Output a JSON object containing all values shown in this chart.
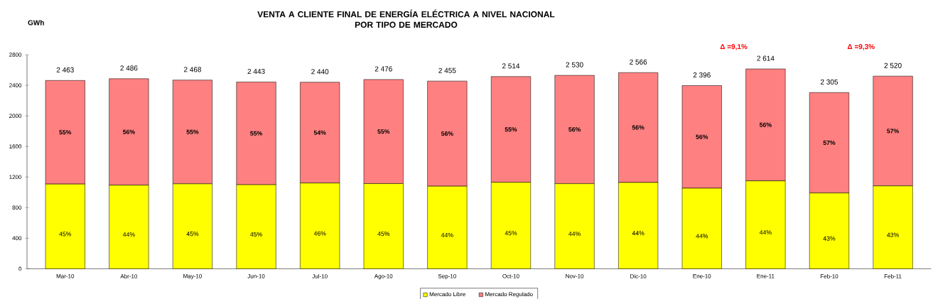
{
  "chart_data": {
    "type": "bar",
    "stacked": true,
    "title": "VENTA A CLIENTE FINAL DE ENERGÍA ELÉCTRICA A NIVEL NACIONAL\nPOR TIPO DE MERCADO",
    "ylabel": "GWh",
    "categories": [
      "Mar-10",
      "Abr-10",
      "May-10",
      "Jun-10",
      "Jul-10",
      "Ago-10",
      "Sep-10",
      "Oct-10",
      "Nov-10",
      "Dic-10",
      "Ene-10",
      "Ene-11",
      "Feb-10",
      "Feb-11"
    ],
    "series": [
      {
        "name": "Mercado Libre",
        "color": "#ffff00",
        "values": [
          1108,
          1094,
          1111,
          1099,
          1122,
          1114,
          1080,
          1131,
          1113,
          1129,
          1054,
          1150,
          991,
          1084
        ]
      },
      {
        "name": "Mercado Regulado",
        "color": "#ff8080",
        "values": [
          1355,
          1392,
          1357,
          1344,
          1318,
          1362,
          1375,
          1383,
          1417,
          1437,
          1342,
          1464,
          1314,
          1436
        ]
      }
    ],
    "totals": [
      "2 463",
      "2 486",
      "2 468",
      "2 443",
      "2 440",
      "2 476",
      "2 455",
      "2 514",
      "2 530",
      "2 566",
      "2 396",
      "2 614",
      "2 305",
      "2 520"
    ],
    "annotations": [
      "**Δ =9,1%**",
      "**Δ =9,3%**",
      "45%",
      "**55%**",
      "44%",
      "**56%**",
      "45%",
      "**55%**",
      "45%",
      "**55%**",
      "46%",
      "**54%**",
      "45%",
      "**55%**",
      "44%",
      "**56%**",
      "45%",
      "**55%**",
      "44%",
      "**56%**",
      "44%",
      "**56%**",
      "44%",
      "**56%**",
      "44%",
      "**56%**",
      "43%",
      "**57%**",
      "43%",
      "**57%**"
    ],
    "ylim": [
      0,
      2800
    ],
    "yticks": [
      0,
      400,
      800,
      1200,
      1600,
      2000,
      2400,
      2800
    ],
    "legend": "bottom"
  }
}
